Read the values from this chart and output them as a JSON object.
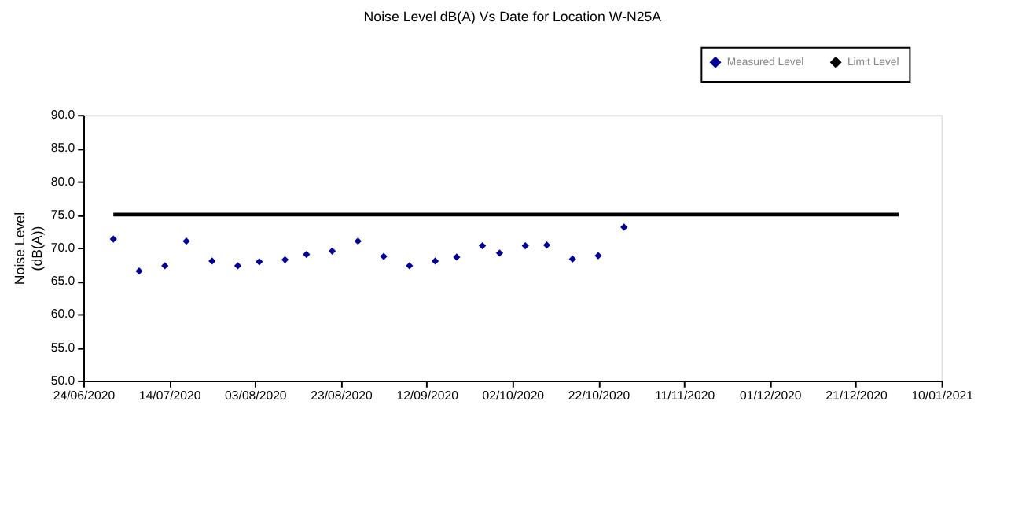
{
  "chart_data": {
    "type": "scatter",
    "title": "Noise Level dB(A) Vs Date for Location W-N25A",
    "ylabel": "Noise Level (dB(A))",
    "legend": "top right",
    "grid": false,
    "xlim": [
      "2020-06-24",
      "2021-01-10"
    ],
    "xticks": [
      {
        "value": "2020-06-24",
        "label": "24/06/2020"
      },
      {
        "value": "2020-07-14",
        "label": "14/07/2020"
      },
      {
        "value": "2020-08-03",
        "label": "03/08/2020"
      },
      {
        "value": "2020-08-23",
        "label": "23/08/2020"
      },
      {
        "value": "2020-09-12",
        "label": "12/09/2020"
      },
      {
        "value": "2020-10-02",
        "label": "02/10/2020"
      },
      {
        "value": "2020-10-22",
        "label": "22/10/2020"
      },
      {
        "value": "2020-11-11",
        "label": "11/11/2020"
      },
      {
        "value": "2020-12-01",
        "label": "01/12/2020"
      },
      {
        "value": "2020-12-21",
        "label": "21/12/2020"
      },
      {
        "value": "2021-01-10",
        "label": "10/01/2021"
      }
    ],
    "ylim": [
      50,
      90
    ],
    "yticks": [
      {
        "value": 50,
        "label": "50.0"
      },
      {
        "value": 55,
        "label": "55.0"
      },
      {
        "value": 60,
        "label": "60.0"
      },
      {
        "value": 65,
        "label": "65.0"
      },
      {
        "value": 70,
        "label": "70.0"
      },
      {
        "value": 75,
        "label": "75.0"
      },
      {
        "value": 80,
        "label": "80.0"
      },
      {
        "value": 85,
        "label": "85.0"
      },
      {
        "value": 90,
        "label": "90.0"
      }
    ],
    "series": [
      {
        "name": "Measured Level",
        "marker": "diamond",
        "color": "#000099",
        "x": [
          "2020-07-01",
          "2020-07-07",
          "2020-07-13",
          "2020-07-18",
          "2020-07-24",
          "2020-07-30",
          "2020-08-04",
          "2020-08-10",
          "2020-08-15",
          "2020-08-21",
          "2020-08-27",
          "2020-09-02",
          "2020-09-08",
          "2020-09-14",
          "2020-09-19",
          "2020-09-25",
          "2020-09-29",
          "2020-10-05",
          "2020-10-10",
          "2020-10-16",
          "2020-10-22",
          "2020-10-28"
        ],
        "values": [
          71.3,
          66.5,
          67.3,
          71.0,
          68.0,
          67.3,
          67.9,
          68.2,
          69.0,
          69.5,
          71.0,
          68.7,
          67.3,
          68.0,
          68.6,
          70.3,
          69.2,
          70.3,
          70.4,
          68.3,
          68.8,
          73.1
        ]
      },
      {
        "name": "Limit Level",
        "type": "line",
        "color": "#000000",
        "x": [
          "2020-07-01",
          "2020-12-31"
        ],
        "values": [
          75,
          75
        ]
      }
    ]
  }
}
